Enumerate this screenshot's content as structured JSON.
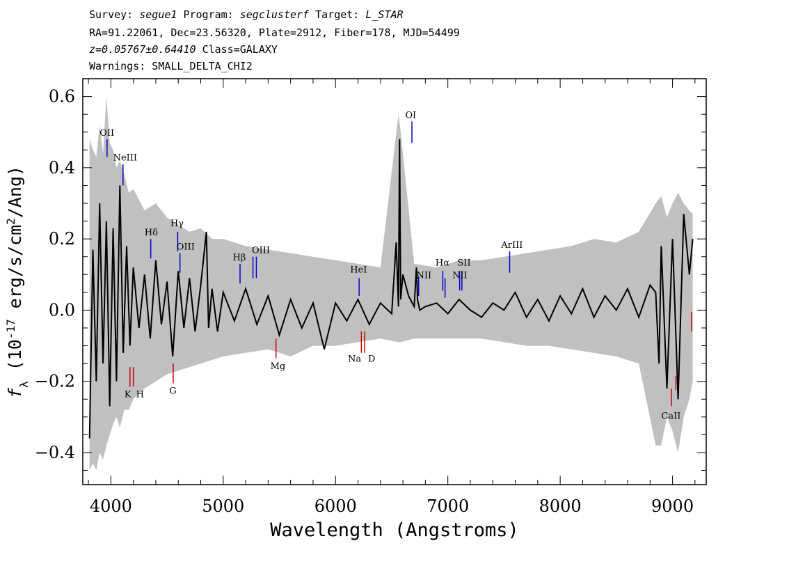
{
  "header": {
    "survey_label": "Survey:",
    "survey": "segue1",
    "program_label": "Program:",
    "program": "segclusterf",
    "target_label": "Target:",
    "target": "L_STAR",
    "coords": "RA=91.22061, Dec=23.56320, Plate=2912, Fiber=178, MJD=54499",
    "redshift": "z=0.05767±0.64410",
    "class": "Class=GALAXY",
    "warnings": "Warnings: SMALL_DELTA_CHI2"
  },
  "chart_data": {
    "type": "line",
    "xlabel": "Wavelength (Angstroms)",
    "ylabel_main": "f",
    "ylabel_sub": "λ",
    "ylabel_rest": " (10",
    "ylabel_exp": "-17",
    "ylabel_unit": " erg/s/cm",
    "ylabel_sq": "2",
    "ylabel_end": "/Ang)",
    "xlim": [
      3750,
      9300
    ],
    "ylim": [
      -0.49,
      0.65
    ],
    "x_ticks": [
      4000,
      5000,
      6000,
      7000,
      8000,
      9000
    ],
    "y_ticks": [
      -0.4,
      -0.2,
      0.0,
      0.2,
      0.4,
      0.6
    ],
    "y_tick_labels": [
      "−0.4",
      "−0.2",
      "0.0",
      "0.2",
      "0.4",
      "0.6"
    ],
    "colors": {
      "flux": "#000000",
      "error": "#c0c0c0",
      "emission": "#0000cc",
      "absorption": "#cc0000"
    },
    "series": [
      {
        "type": "flux",
        "x": [
          3810,
          3840,
          3870,
          3900,
          3930,
          3960,
          3990,
          4020,
          4050,
          4080,
          4110,
          4140,
          4170,
          4200,
          4250,
          4300,
          4350,
          4400,
          4450,
          4500,
          4550,
          4600,
          4650,
          4700,
          4750,
          4800,
          4850,
          4870,
          4900,
          4950,
          5000,
          5100,
          5200,
          5300,
          5400,
          5500,
          5600,
          5700,
          5800,
          5900,
          6000,
          6100,
          6200,
          6300,
          6400,
          6500,
          6540,
          6560,
          6570,
          6580,
          6600,
          6650,
          6700,
          6720,
          6730,
          6750,
          6800,
          6900,
          7000,
          7100,
          7200,
          7300,
          7400,
          7500,
          7600,
          7700,
          7800,
          7900,
          8000,
          8100,
          8200,
          8300,
          8400,
          8500,
          8600,
          8700,
          8800,
          8850,
          8880,
          8900,
          8950,
          9000,
          9050,
          9100,
          9150,
          9180
        ],
        "y": [
          -0.36,
          0.17,
          -0.2,
          0.3,
          -0.15,
          0.25,
          -0.27,
          0.23,
          -0.2,
          0.35,
          -0.12,
          0.18,
          -0.1,
          0.12,
          -0.05,
          0.1,
          -0.08,
          0.14,
          -0.04,
          0.08,
          -0.13,
          0.11,
          -0.05,
          0.09,
          -0.06,
          0.07,
          0.22,
          -0.05,
          0.06,
          -0.06,
          0.05,
          -0.03,
          0.06,
          -0.04,
          0.04,
          -0.07,
          0.03,
          -0.05,
          0.02,
          -0.11,
          0.02,
          -0.03,
          0.03,
          -0.04,
          0.02,
          -0.01,
          0.19,
          0.01,
          0.48,
          0.03,
          0.1,
          0.04,
          0.01,
          0.12,
          0.03,
          0.0,
          0.01,
          0.02,
          -0.01,
          0.03,
          0.0,
          -0.02,
          0.02,
          0.0,
          0.05,
          -0.02,
          0.03,
          -0.03,
          0.04,
          -0.01,
          0.06,
          -0.02,
          0.04,
          0.0,
          0.06,
          -0.02,
          0.07,
          0.05,
          -0.15,
          0.18,
          -0.22,
          0.2,
          -0.25,
          0.27,
          0.1,
          0.2
        ]
      },
      {
        "type": "error",
        "x": [
          3810,
          3840,
          3870,
          3900,
          3930,
          3960,
          3990,
          4020,
          4050,
          4080,
          4120,
          4160,
          4200,
          4300,
          4400,
          4500,
          4600,
          4700,
          4800,
          4900,
          5000,
          5200,
          5400,
          5600,
          5800,
          6000,
          6200,
          6400,
          6560,
          6580,
          6700,
          6900,
          7100,
          7300,
          7500,
          7700,
          7900,
          8100,
          8300,
          8500,
          8700,
          8850,
          8900,
          8950,
          9000,
          9050,
          9100,
          9150,
          9180
        ],
        "upper": [
          0.48,
          0.45,
          0.43,
          0.52,
          0.44,
          0.6,
          0.47,
          0.45,
          0.4,
          0.42,
          0.38,
          0.33,
          0.34,
          0.28,
          0.3,
          0.26,
          0.24,
          0.22,
          0.23,
          0.2,
          0.2,
          0.18,
          0.17,
          0.16,
          0.15,
          0.14,
          0.13,
          0.12,
          0.55,
          0.5,
          0.13,
          0.12,
          0.14,
          0.14,
          0.15,
          0.16,
          0.17,
          0.18,
          0.2,
          0.19,
          0.22,
          0.3,
          0.32,
          0.26,
          0.3,
          0.33,
          0.3,
          0.28,
          0.27
        ],
        "lower": [
          -0.45,
          -0.43,
          -0.45,
          -0.4,
          -0.42,
          -0.38,
          -0.35,
          -0.32,
          -0.3,
          -0.33,
          -0.28,
          -0.28,
          -0.25,
          -0.22,
          -0.2,
          -0.18,
          -0.17,
          -0.16,
          -0.15,
          -0.14,
          -0.13,
          -0.12,
          -0.11,
          -0.13,
          -0.1,
          -0.1,
          -0.09,
          -0.08,
          -0.09,
          -0.09,
          -0.08,
          -0.08,
          -0.08,
          -0.08,
          -0.09,
          -0.1,
          -0.1,
          -0.11,
          -0.12,
          -0.13,
          -0.15,
          -0.38,
          -0.38,
          -0.3,
          -0.34,
          -0.4,
          -0.3,
          -0.25,
          -0.2
        ]
      }
    ],
    "emission_lines": [
      {
        "label": "OII",
        "x": 3966,
        "y0": 0.43,
        "y1": 0.48
      },
      {
        "label": "NeIII",
        "x": 4108,
        "y0": 0.35,
        "y1": 0.41
      },
      {
        "label": "Hδ",
        "x": 4355,
        "y0": 0.145,
        "y1": 0.2
      },
      {
        "label": "Hγ",
        "x": 4595,
        "y0": 0.165,
        "y1": 0.22
      },
      {
        "label": "OIII",
        "x": 4615,
        "y0": 0.105,
        "y1": 0.16
      },
      {
        "label": "Hβ",
        "x": 5150,
        "y0": 0.075,
        "y1": 0.13
      },
      {
        "label": "OIII",
        "x": 5265,
        "y0": 0.09,
        "y1": 0.15
      },
      {
        "label": "OIII",
        "x": 5295,
        "y0": 0.09,
        "y1": 0.15
      },
      {
        "label": "HeI",
        "x": 6210,
        "y0": 0.04,
        "y1": 0.09
      },
      {
        "label": "OI",
        "x": 6680,
        "y0": 0.47,
        "y1": 0.53
      },
      {
        "label": "NII",
        "x": 6740,
        "y0": 0.04,
        "y1": 0.095
      },
      {
        "label": "Hα",
        "x": 6955,
        "y0": 0.055,
        "y1": 0.11
      },
      {
        "label": "NII",
        "x": 6975,
        "y0": 0.035,
        "y1": 0.09
      },
      {
        "label": "SII",
        "x": 7105,
        "y0": 0.055,
        "y1": 0.11
      },
      {
        "label": "SII",
        "x": 7125,
        "y0": 0.055,
        "y1": 0.11
      },
      {
        "label": "ArIII",
        "x": 7550,
        "y0": 0.105,
        "y1": 0.165
      }
    ],
    "absorption_lines": [
      {
        "label": "K",
        "x": 4170,
        "y0": -0.16,
        "y1": -0.215
      },
      {
        "label": "H",
        "x": 4200,
        "y0": -0.16,
        "y1": -0.215
      },
      {
        "label": "G",
        "x": 4555,
        "y0": -0.15,
        "y1": -0.205
      },
      {
        "label": "Mg",
        "x": 5470,
        "y0": -0.08,
        "y1": -0.135
      },
      {
        "label": "Na",
        "x": 6230,
        "y0": -0.06,
        "y1": -0.12
      },
      {
        "label": "D",
        "x": 6260,
        "y0": -0.06,
        "y1": -0.12
      },
      {
        "label": "CaII",
        "x": 8990,
        "y0": -0.22,
        "y1": -0.27
      },
      {
        "label": "CaII",
        "x": 9030,
        "y0": -0.185,
        "y1": -0.225
      },
      {
        "label": "CaII",
        "x": 9170,
        "y0": -0.005,
        "y1": -0.06
      }
    ],
    "line_labels": [
      {
        "text": "OII",
        "x": 3900,
        "y": 0.49
      },
      {
        "text": "NeIII",
        "x": 4020,
        "y": 0.42
      },
      {
        "text": "Hδ",
        "x": 4300,
        "y": 0.21
      },
      {
        "text": "Hγ",
        "x": 4530,
        "y": 0.235
      },
      {
        "text": "OIII",
        "x": 4585,
        "y": 0.17
      },
      {
        "text": "Hβ",
        "x": 5085,
        "y": 0.14
      },
      {
        "text": "OIII",
        "x": 5255,
        "y": 0.16
      },
      {
        "text": "HeI",
        "x": 6130,
        "y": 0.105
      },
      {
        "text": "OI",
        "x": 6620,
        "y": 0.54
      },
      {
        "text": "NII",
        "x": 6720,
        "y": 0.09
      },
      {
        "text": "Hα",
        "x": 6890,
        "y": 0.125
      },
      {
        "text": "NII",
        "x": 7040,
        "y": 0.09
      },
      {
        "text": "SII",
        "x": 7085,
        "y": 0.125
      },
      {
        "text": "ArIII",
        "x": 7475,
        "y": 0.175
      },
      {
        "text": "Mg",
        "x": 5420,
        "y": -0.165
      },
      {
        "text": "Na",
        "x": 6110,
        "y": -0.145
      },
      {
        "text": "D",
        "x": 6290,
        "y": -0.145
      },
      {
        "text": "K",
        "x": 4120,
        "y": -0.245
      },
      {
        "text": "H",
        "x": 4225,
        "y": -0.245
      },
      {
        "text": "G",
        "x": 4520,
        "y": -0.235
      },
      {
        "text": "CaII",
        "x": 8900,
        "y": -0.305
      }
    ]
  }
}
